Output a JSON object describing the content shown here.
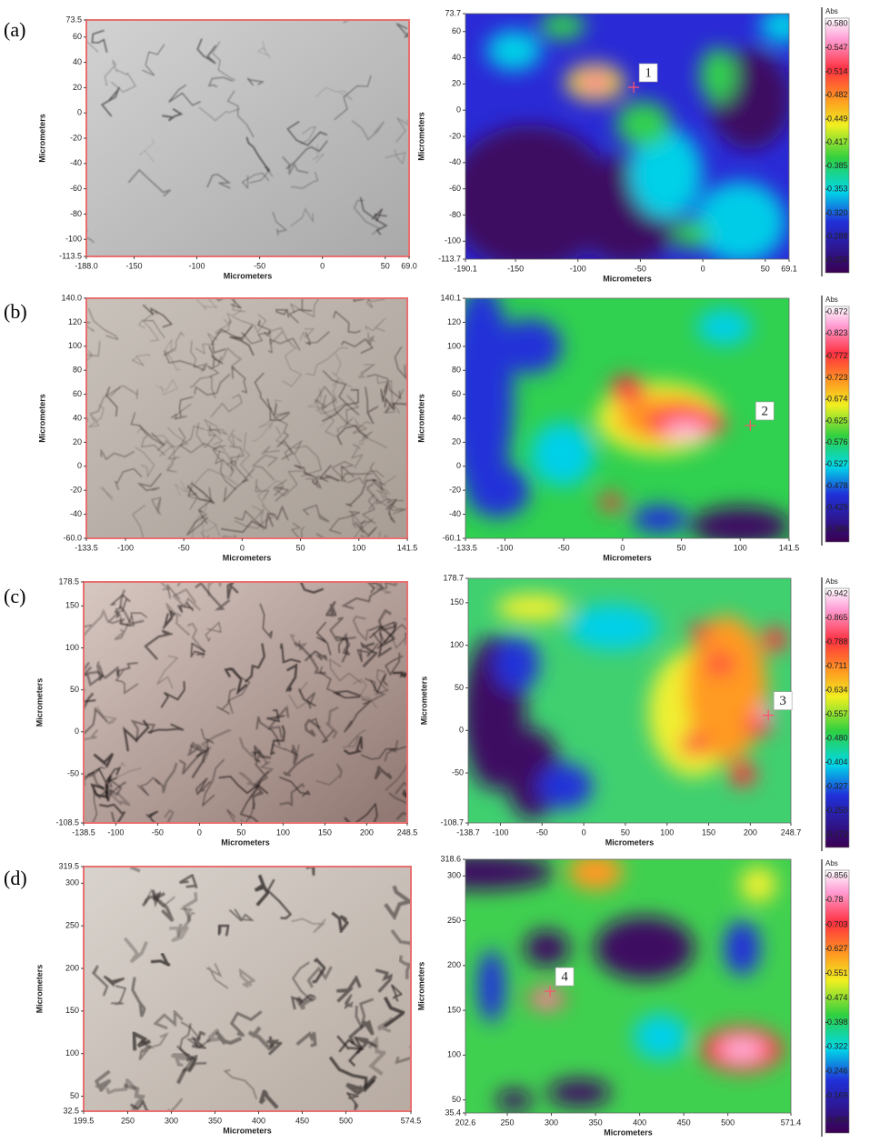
{
  "panels": [
    {
      "label": "(a)",
      "image_axes": {
        "x_title": "Micrometers",
        "y_title": "Micrometers",
        "xticks": [
          {
            "value": -188,
            "label": "-188.0"
          },
          -150,
          -100,
          -50,
          0,
          50,
          {
            "value": 69,
            "label": "69.0"
          }
        ],
        "yticks": [
          73.5,
          60,
          40,
          20,
          0,
          -20,
          -40,
          -60,
          -80,
          -100,
          -113.5
        ]
      },
      "map_axes": {
        "x_title": "Micrometers",
        "y_title": "Micrometers",
        "xticks": [
          -190.1,
          -150,
          -100,
          -50,
          0,
          50,
          69.1
        ],
        "yticks": [
          73.7,
          60,
          40,
          20,
          0,
          -20,
          -40,
          -60,
          -80,
          -100,
          -113.7
        ]
      },
      "colorbar": {
        "title": "Abs",
        "ticks": [
          {
            "value": 0.58,
            "label": "0.580"
          },
          0.547,
          0.514,
          0.482,
          0.449,
          0.417,
          0.385,
          0.353,
          {
            "value": 0.32,
            "label": "0.320"
          },
          0.288,
          0.256
        ]
      },
      "marker": "1"
    },
    {
      "label": "(b)",
      "image_axes": {
        "x_title": "Micrometers",
        "y_title": "Micrometers",
        "xticks": [
          -133.5,
          -100,
          -50,
          0,
          50,
          100,
          141.5
        ],
        "yticks": [
          {
            "value": 140,
            "label": "140.0"
          },
          120,
          100,
          80,
          60,
          40,
          20,
          0,
          -20,
          -40,
          {
            "value": -60,
            "label": "-60.0"
          }
        ]
      },
      "map_axes": {
        "x_title": "Micrometers",
        "y_title": "Micrometers",
        "xticks": [
          -133.5,
          -100,
          -50,
          0,
          50,
          100,
          141.5
        ],
        "yticks": [
          140.1,
          120,
          100,
          80,
          60,
          40,
          20,
          0,
          -20,
          -40,
          -60.1
        ]
      },
      "colorbar": {
        "title": "Abs",
        "ticks": [
          0.872,
          0.823,
          0.772,
          0.723,
          0.674,
          0.625,
          0.576,
          0.527,
          0.478,
          0.429,
          {
            "value": 0.38,
            "label": "0.380"
          }
        ]
      },
      "marker": "2"
    },
    {
      "label": "(c)",
      "image_axes": {
        "x_title": "Micrometers",
        "y_title": "Micrometers",
        "xticks": [
          -138.5,
          -100,
          -50,
          0,
          50,
          100,
          150,
          200,
          248.5
        ],
        "yticks": [
          178.5,
          150,
          100,
          50,
          0,
          -50,
          -108.5
        ]
      },
      "map_axes": {
        "x_title": "Micrometers",
        "y_title": "Micrometers",
        "xticks": [
          -138.7,
          -100,
          -50,
          0,
          50,
          100,
          150,
          200,
          248.7
        ],
        "yticks": [
          178.7,
          150,
          100,
          50,
          0,
          -50,
          -108.7
        ]
      },
      "colorbar": {
        "title": "Abs",
        "ticks": [
          0.942,
          0.865,
          0.788,
          0.711,
          0.634,
          0.557,
          {
            "value": 0.48,
            "label": "0.480"
          },
          0.404,
          0.327,
          {
            "value": 0.25,
            "label": "0.250"
          },
          0.173
        ]
      },
      "marker": "3"
    },
    {
      "label": "(d)",
      "image_axes": {
        "x_title": "Micrometers",
        "y_title": "Micrometers",
        "xticks": [
          199.5,
          250,
          300,
          350,
          400,
          450,
          500,
          574.5
        ],
        "yticks": [
          319.5,
          300,
          250,
          200,
          150,
          100,
          50,
          32.5
        ]
      },
      "map_axes": {
        "x_title": "Micrometers",
        "y_title": "Micrometers",
        "xticks": [
          202.6,
          250,
          300,
          350,
          400,
          450,
          500,
          571.4
        ],
        "yticks": [
          318.6,
          300,
          250,
          200,
          150,
          100,
          50,
          35.4
        ]
      },
      "colorbar": {
        "title": "Abs",
        "ticks": [
          0.856,
          0.78,
          0.703,
          0.627,
          0.551,
          0.474,
          0.398,
          0.322,
          0.246,
          0.169,
          0.093
        ]
      },
      "marker": "4"
    }
  ]
}
